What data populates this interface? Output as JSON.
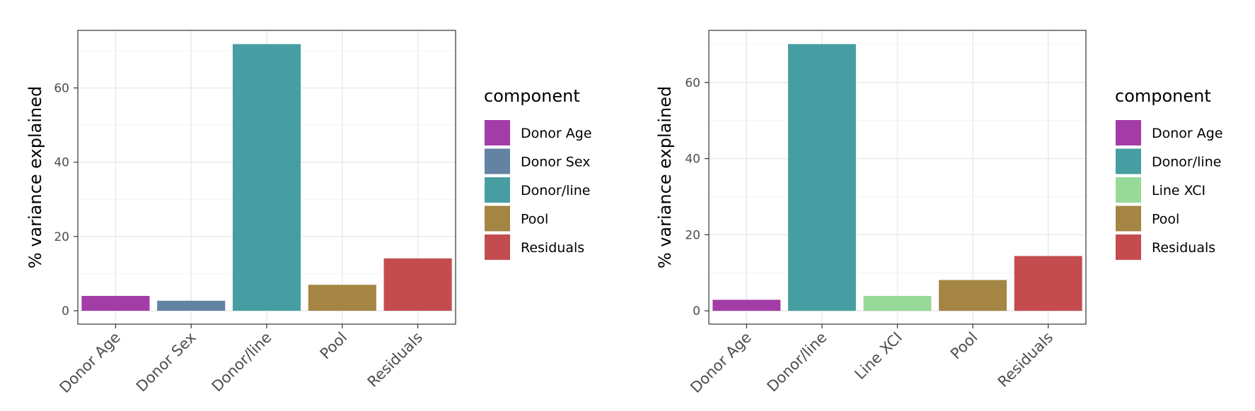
{
  "chart_data": [
    {
      "type": "bar",
      "ylabel": "% variance explained",
      "xlabel": "",
      "ylim": [
        -3.6,
        75.5
      ],
      "yticks": [
        0,
        20,
        40,
        60
      ],
      "grid": true,
      "legend_title": "component",
      "legend_position": "right",
      "categories": [
        "Donor Age",
        "Donor Sex",
        "Donor/line",
        "Pool",
        "Residuals"
      ],
      "values": [
        4.0,
        2.7,
        71.8,
        7.0,
        14.1
      ],
      "colors": [
        "#9b2ba0",
        "#56789b",
        "#36969a",
        "#9c7b34",
        "#bf3d40"
      ],
      "legend": [
        "Donor Age",
        "Donor Sex",
        "Donor/line",
        "Pool",
        "Residuals"
      ]
    },
    {
      "type": "bar",
      "ylabel": "% variance explained",
      "xlabel": "",
      "ylim": [
        -3.5,
        73.7
      ],
      "yticks": [
        0,
        20,
        40,
        60
      ],
      "grid": true,
      "legend_title": "component",
      "legend_position": "right",
      "categories": [
        "Donor Age",
        "Donor/line",
        "Line XCI",
        "Pool",
        "Residuals"
      ],
      "values": [
        2.9,
        70.1,
        3.9,
        8.1,
        14.4
      ],
      "colors": [
        "#9b2ba0",
        "#36969a",
        "#8fd68f",
        "#9c7b34",
        "#bf3d40"
      ],
      "legend": [
        "Donor Age",
        "Donor/line",
        "Line XCI",
        "Pool",
        "Residuals"
      ]
    }
  ]
}
